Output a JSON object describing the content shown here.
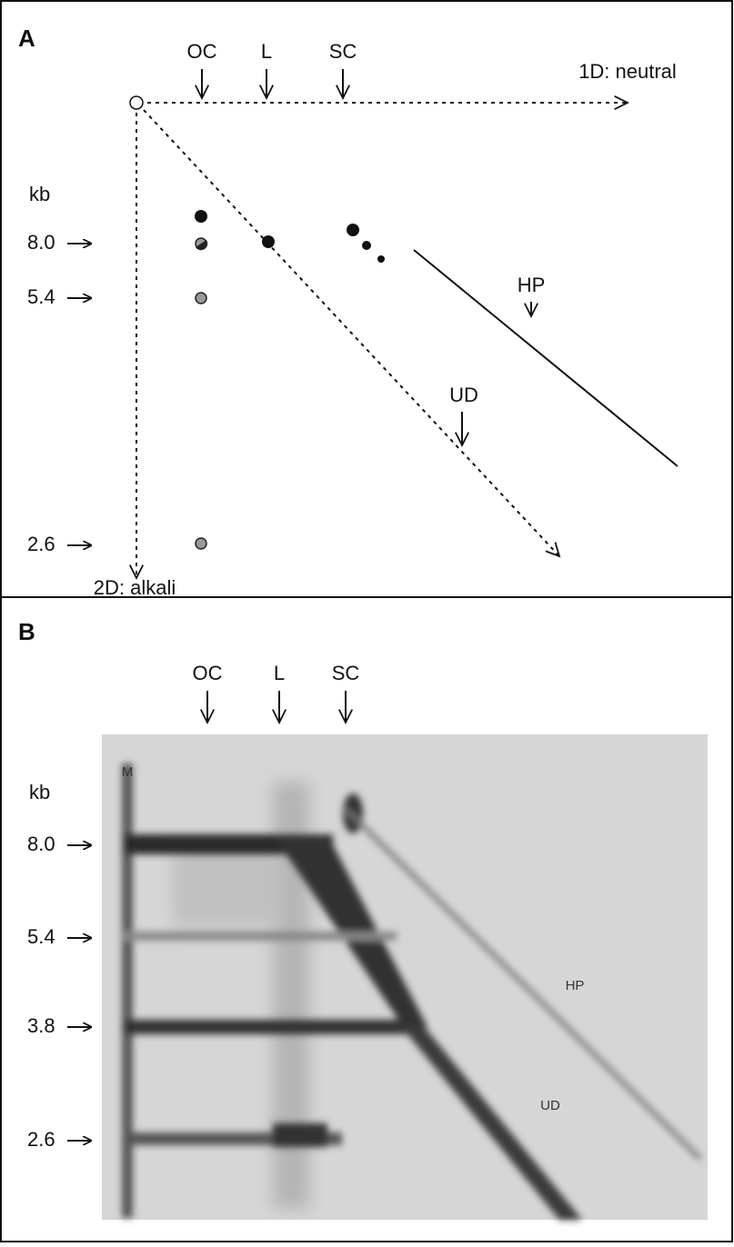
{
  "panel_a": {
    "label": "A",
    "forms": [
      "OC",
      "L",
      "SC"
    ],
    "axis_1d": "1D: neutral",
    "axis_2d": "2D: alkali",
    "unit": "kb",
    "markers": [
      "8.0",
      "5.4",
      "2.6"
    ],
    "hp": "HP",
    "ud": "UD"
  },
  "panel_b": {
    "label": "B",
    "forms": [
      "OC",
      "L",
      "SC"
    ],
    "lane": "M",
    "unit": "kb",
    "markers": [
      "8.0",
      "5.4",
      "3.8",
      "2.6"
    ],
    "hp": "HP",
    "ud": "UD"
  }
}
